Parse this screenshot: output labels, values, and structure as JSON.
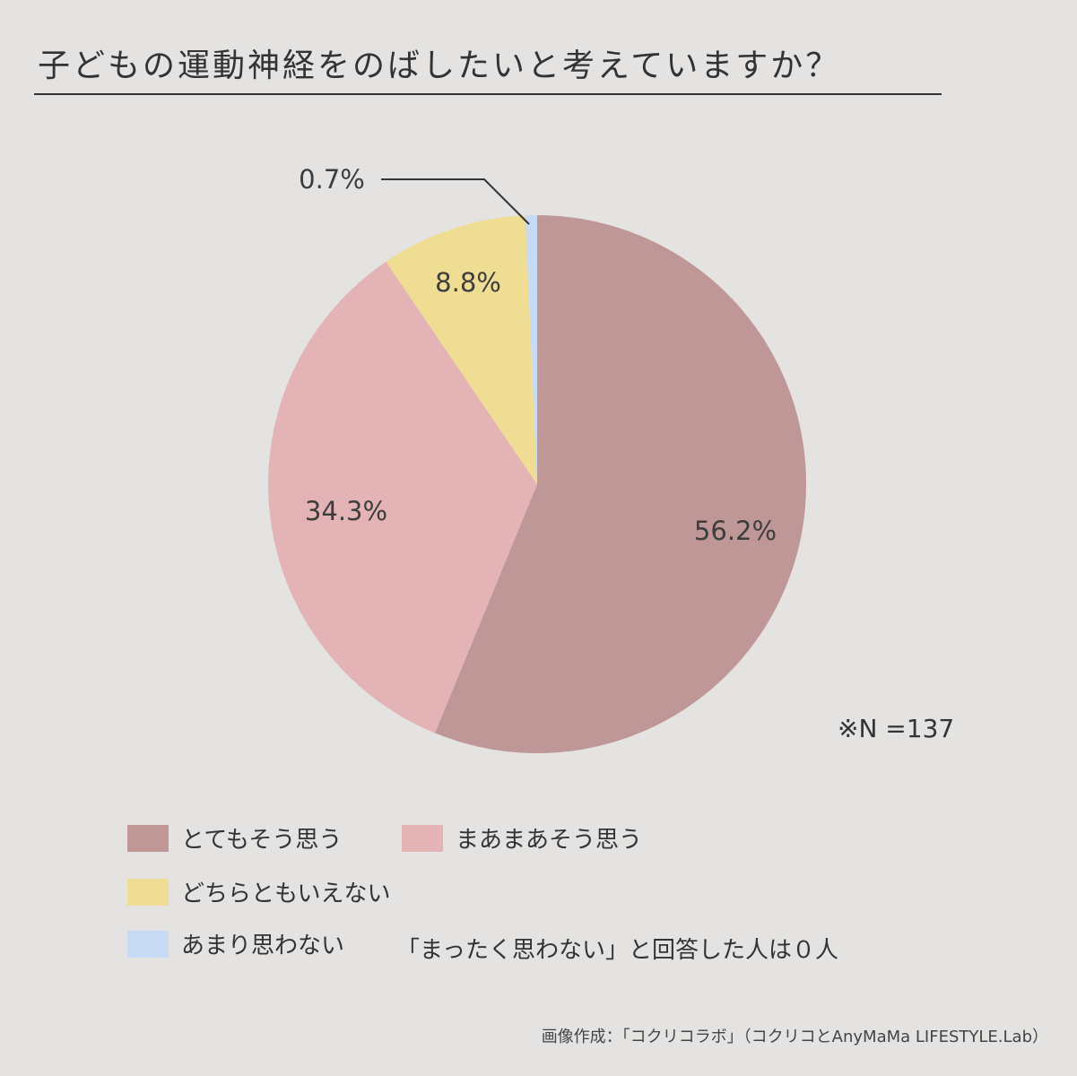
{
  "title": "子どもの運動神経をのばしたいと考えていますか？",
  "note": "※N =137",
  "credit": "画像作成：「コクリコラボ」（コクリコとAnyMaMa LIFESTYLE.Lab）",
  "legend_note": "「まったく思わない」と回答した人は０人",
  "chart_data": {
    "type": "pie",
    "slices": [
      {
        "label": "とてもそう思う",
        "value": 56.2,
        "value_label": "56.2%",
        "color": "#bf9797"
      },
      {
        "label": "まあまあそう思う",
        "value": 34.3,
        "value_label": "34.3%",
        "color": "#e4b3b5"
      },
      {
        "label": "どちらともいえない",
        "value": 8.8,
        "value_label": "8.8%",
        "color": "#eedd92"
      },
      {
        "label": "あまり思わない",
        "value": 0.7,
        "value_label": "0.7%",
        "color": "#c9daf5"
      }
    ],
    "start_angle": "top",
    "direction": "clockwise",
    "legend_position": "bottom-left"
  }
}
